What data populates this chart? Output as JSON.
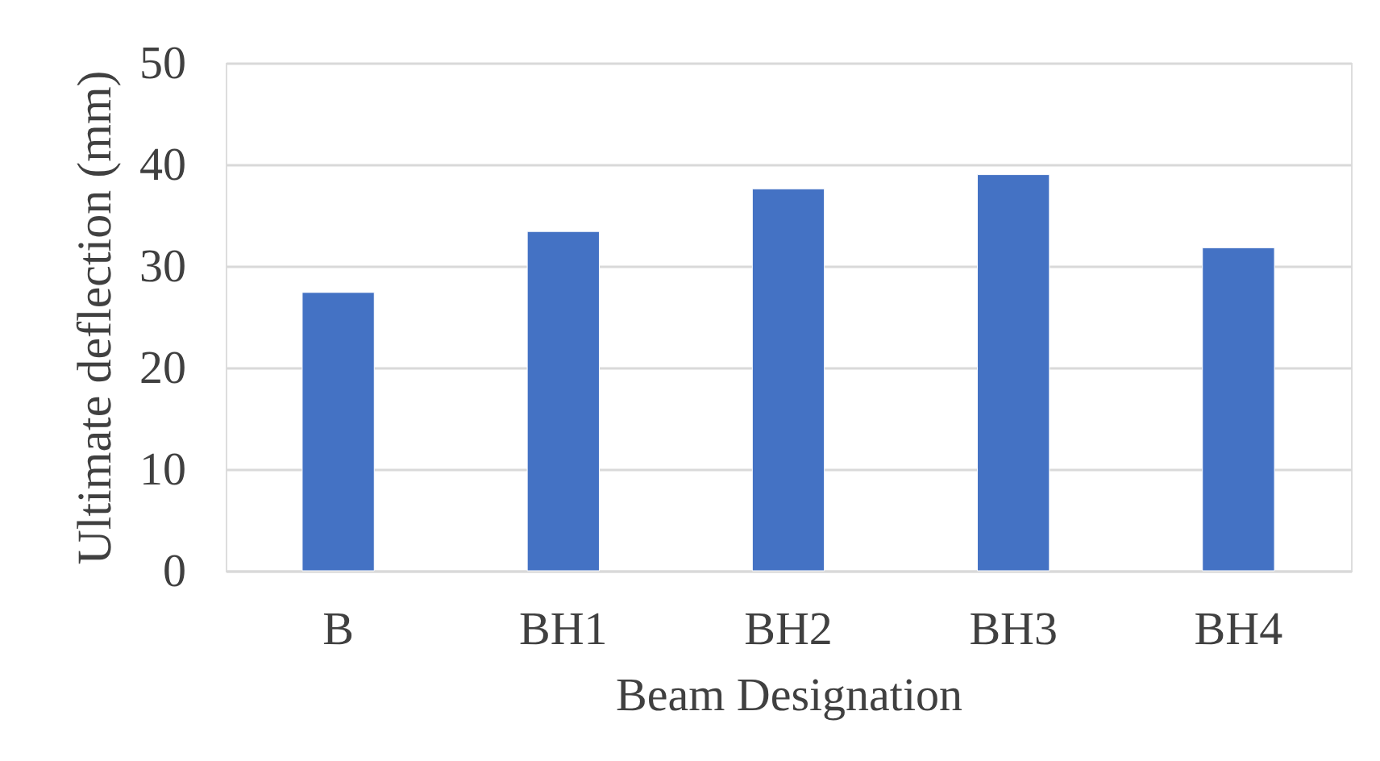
{
  "chart_data": {
    "type": "bar",
    "xlabel": "Beam Designation",
    "ylabel": "Ultimate deflection (mm)",
    "categories": [
      "B",
      "BH1",
      "BH2",
      "BH3",
      "BH4"
    ],
    "values": [
      27.4,
      33.4,
      37.6,
      39.0,
      31.8
    ],
    "color": "#4472c4",
    "ylim": [
      0,
      50
    ],
    "yticks": [
      0,
      10,
      20,
      30,
      40,
      50
    ],
    "grid": "y"
  }
}
